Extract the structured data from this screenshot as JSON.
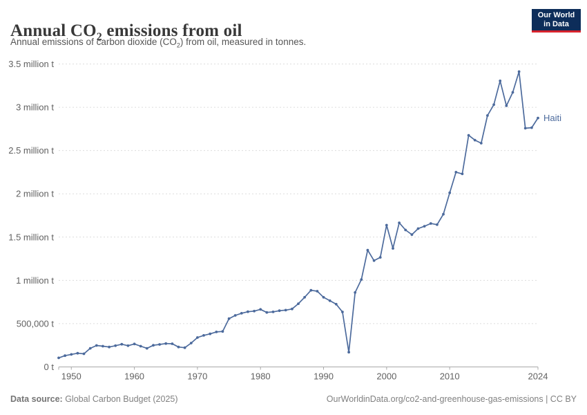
{
  "header": {
    "title_pre": "Annual CO",
    "title_sub": "2",
    "title_post": " emissions from oil",
    "subtitle_pre": "Annual emissions of carbon dioxide (CO",
    "subtitle_sub": "2",
    "subtitle_post": ") from oil, measured in tonnes."
  },
  "logo": {
    "line1": "Our World",
    "line2": "in Data"
  },
  "footer": {
    "source_label": "Data source:",
    "source_text": " Global Carbon Budget (2025)",
    "link_text": "OurWorldinData.org/co2-and-greenhouse-gas-emissions",
    "license_text": " | CC BY"
  },
  "chart_data": {
    "type": "line",
    "title": "Annual CO2 emissions from oil",
    "xlabel": "",
    "ylabel": "",
    "xlim": [
      1948,
      2024
    ],
    "ylim": [
      0,
      3500000
    ],
    "grid": "dashed-horizontal",
    "legend_position": "end-of-line-label",
    "x_ticks": [
      1950,
      1960,
      1970,
      1980,
      1990,
      2000,
      2010,
      2024
    ],
    "y_ticks": [
      {
        "value": 0,
        "label": "0 t"
      },
      {
        "value": 500000,
        "label": "500,000 t"
      },
      {
        "value": 1000000,
        "label": "1 million t"
      },
      {
        "value": 1500000,
        "label": "1.5 million t"
      },
      {
        "value": 2000000,
        "label": "2 million t"
      },
      {
        "value": 2500000,
        "label": "2.5 million t"
      },
      {
        "value": 3000000,
        "label": "3 million t"
      },
      {
        "value": 3500000,
        "label": "3.5 million t"
      }
    ],
    "series": [
      {
        "name": "Haiti",
        "color": "#4C6A9C",
        "years": [
          1948,
          1949,
          1950,
          1951,
          1952,
          1953,
          1954,
          1955,
          1956,
          1957,
          1958,
          1959,
          1960,
          1961,
          1962,
          1963,
          1964,
          1965,
          1966,
          1967,
          1968,
          1969,
          1970,
          1971,
          1972,
          1973,
          1974,
          1975,
          1976,
          1977,
          1978,
          1979,
          1980,
          1981,
          1982,
          1983,
          1984,
          1985,
          1986,
          1987,
          1988,
          1989,
          1990,
          1991,
          1992,
          1993,
          1994,
          1995,
          1996,
          1997,
          1998,
          1999,
          2000,
          2001,
          2002,
          2003,
          2004,
          2005,
          2006,
          2007,
          2008,
          2009,
          2010,
          2011,
          2012,
          2013,
          2014,
          2015,
          2016,
          2017,
          2018,
          2019,
          2020,
          2021,
          2022,
          2023,
          2024
        ],
        "values": [
          105000,
          130000,
          145000,
          158000,
          152000,
          215000,
          248000,
          240000,
          230000,
          245000,
          262000,
          245000,
          265000,
          240000,
          215000,
          250000,
          260000,
          270000,
          268000,
          230000,
          222000,
          276000,
          340000,
          364000,
          382000,
          404000,
          410000,
          558000,
          595000,
          620000,
          638000,
          645000,
          665000,
          630000,
          636000,
          650000,
          656000,
          670000,
          730000,
          805000,
          885000,
          875000,
          805000,
          765000,
          725000,
          635000,
          170000,
          860000,
          1010000,
          1350000,
          1228000,
          1266000,
          1638000,
          1370000,
          1665000,
          1582000,
          1529000,
          1598000,
          1625000,
          1657000,
          1644000,
          1764000,
          2012000,
          2250000,
          2230000,
          2676000,
          2620000,
          2585000,
          2905000,
          3030000,
          3305000,
          3017000,
          3172000,
          3412000,
          2758000,
          2764000,
          2876000
        ]
      }
    ],
    "style": {
      "grid_color": "#dcdcdc",
      "axis_color": "#a8a8a8",
      "tick_label_color": "#616161"
    }
  }
}
